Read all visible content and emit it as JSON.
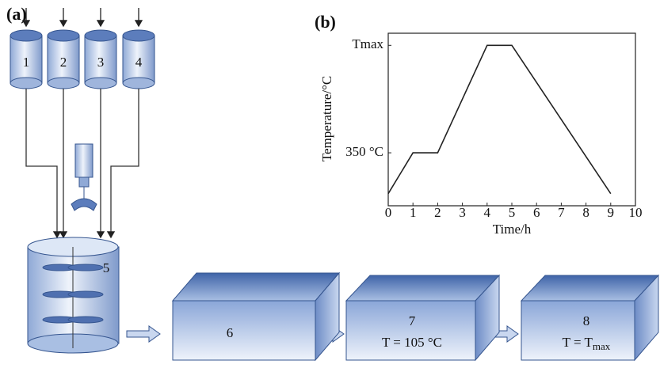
{
  "panel_a": {
    "label": "(a)",
    "tanks": [
      "1",
      "2",
      "3",
      "4"
    ],
    "mixer": "5",
    "furnace_1": {
      "label": "6"
    },
    "furnace_2": {
      "label": "7",
      "condition": "T = 105 °C"
    },
    "furnace_3": {
      "label": "8",
      "condition_main": "T = T",
      "condition_sub": "max"
    }
  },
  "chart_data": {
    "type": "line",
    "panel_label": "(b)",
    "x_label": "Time/h",
    "y_label": "Temperature/°C",
    "x": [
      0,
      1,
      2,
      4,
      5,
      9
    ],
    "series": [
      {
        "values": [
          80,
          350,
          350,
          1060,
          1060,
          80
        ],
        "color": "#222222"
      }
    ],
    "xlim": [
      0,
      10
    ],
    "xticks": [
      0,
      1,
      2,
      3,
      4,
      5,
      6,
      7,
      8,
      9,
      10
    ],
    "ylim": [
      0,
      1140
    ],
    "yticks": [
      {
        "value": 350,
        "label": "350 °C"
      },
      {
        "value": 1060,
        "label": "Tmax"
      }
    ]
  }
}
